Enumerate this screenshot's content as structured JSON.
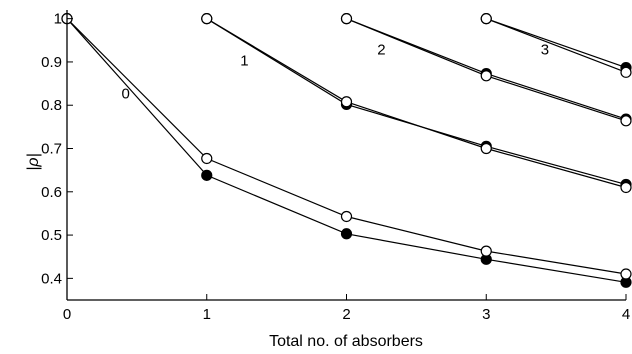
{
  "chart_data": {
    "type": "line",
    "xlabel": "Total no. of absorbers",
    "ylabel": "|ρ|",
    "xlim": [
      0,
      4
    ],
    "ylim": [
      0.35,
      1.02
    ],
    "xticks": [
      "0",
      "1",
      "2",
      "3",
      "4"
    ],
    "yticks": [
      "1",
      "0.9",
      "0.8",
      "0.7",
      "0.6",
      "0.5",
      "0.4"
    ],
    "grid": false,
    "series": [
      {
        "marker": "open",
        "x": [
          0,
          1,
          2,
          3,
          4
        ],
        "y": [
          1.0,
          0.677,
          0.543,
          0.463,
          0.41
        ]
      },
      {
        "marker": "filled",
        "x": [
          0,
          1,
          2,
          3,
          4
        ],
        "y": [
          1.0,
          0.638,
          0.503,
          0.444,
          0.391
        ]
      },
      {
        "marker": "open",
        "x": [
          1,
          2,
          3,
          4
        ],
        "y": [
          1.0,
          0.808,
          0.7,
          0.61
        ]
      },
      {
        "marker": "filled",
        "x": [
          1,
          2,
          3,
          4
        ],
        "y": [
          1.0,
          0.802,
          0.705,
          0.617
        ]
      },
      {
        "marker": "open",
        "x": [
          2,
          3,
          4
        ],
        "y": [
          1.0,
          0.868,
          0.764
        ]
      },
      {
        "marker": "filled",
        "x": [
          2,
          3,
          4
        ],
        "y": [
          1.0,
          0.873,
          0.768
        ]
      },
      {
        "marker": "open",
        "x": [
          3,
          4
        ],
        "y": [
          1.0,
          0.876
        ]
      },
      {
        "marker": "filled",
        "x": [
          3,
          4
        ],
        "y": [
          1.0,
          0.887
        ]
      }
    ],
    "annotations": [
      {
        "text": "0",
        "x": 0.42,
        "y": 0.815
      },
      {
        "text": "1",
        "x": 1.27,
        "y": 0.892
      },
      {
        "text": "2",
        "x": 2.25,
        "y": 0.917
      },
      {
        "text": "3",
        "x": 3.42,
        "y": 0.917
      }
    ]
  }
}
